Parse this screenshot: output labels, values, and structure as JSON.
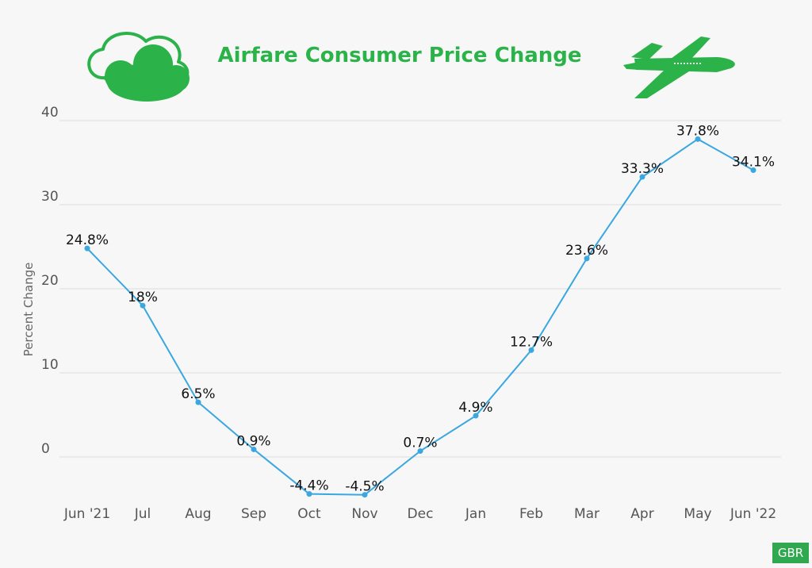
{
  "colors": {
    "background": "#f7f7f7",
    "title": "#2bb34a",
    "icon_green": "#2bb34a",
    "line": "#3aa7e0",
    "grid": "#dddddd",
    "badge_bg": "#2fa84f"
  },
  "icons": {
    "left": "cloud-icon",
    "right": "airplane-icon"
  },
  "badge": {
    "text": "GBR"
  },
  "chart_data": {
    "type": "line",
    "title": "Airfare Consumer Price Change",
    "xlabel": "",
    "ylabel": "Percent Change",
    "ylim": [
      -5,
      40
    ],
    "yticks": [
      0,
      10,
      20,
      30,
      40
    ],
    "grid": true,
    "categories": [
      "Jun '21",
      "Jul",
      "Aug",
      "Sep",
      "Oct",
      "Nov",
      "Dec",
      "Jan",
      "Feb",
      "Mar",
      "Apr",
      "May",
      "Jun '22"
    ],
    "values": [
      24.8,
      18,
      6.5,
      0.9,
      -4.4,
      -4.5,
      0.7,
      4.9,
      12.7,
      23.6,
      33.3,
      37.8,
      34.1
    ],
    "data_labels": [
      "24.8%",
      "18%",
      "6.5%",
      "0.9%",
      "-4.4%",
      "-4.5%",
      "0.7%",
      "4.9%",
      "12.7%",
      "23.6%",
      "33.3%",
      "37.8%",
      "34.1%"
    ]
  }
}
